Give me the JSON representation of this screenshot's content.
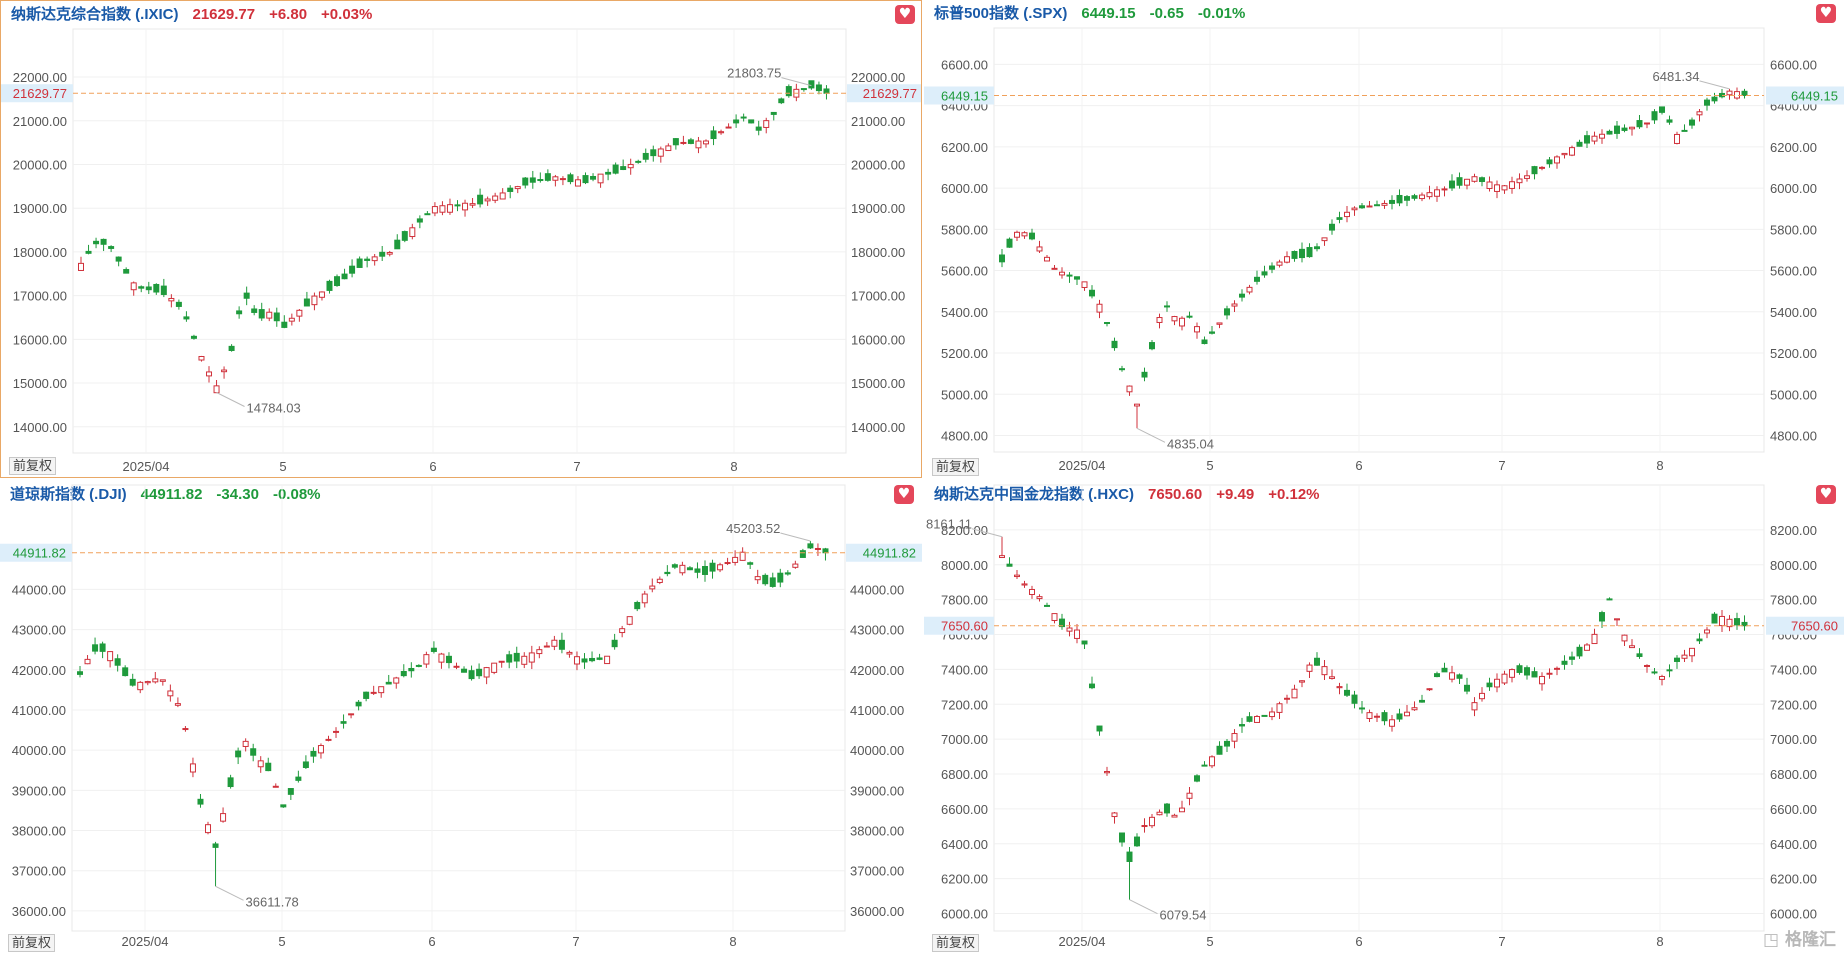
{
  "panels": [
    {
      "name": "纳斯达克综合指数",
      "code": "(.IXIC)",
      "last": "21629.77",
      "change": "+6.80",
      "pct": "+0.03%",
      "direction": "up",
      "active": true,
      "adjust_label": "前复权",
      "chart_data": {
        "type": "candlestick",
        "title": "纳斯达克综合指数 (.IXIC)",
        "x_tick_labels": [
          "2025/04",
          "5",
          "6",
          "7",
          "8"
        ],
        "y_tick_labels": [
          "22000.00",
          "21000.00",
          "20000.00",
          "19000.00",
          "18000.00",
          "17000.00",
          "16000.00",
          "15000.00",
          "14000.00"
        ],
        "ylim": [
          13400,
          22550
        ],
        "current_price": 21629.77,
        "current_price_label": "21629.77",
        "max": {
          "value": 21803.75,
          "label": "21803.75"
        },
        "min": {
          "value": 14784.03,
          "label": "14784.03"
        },
        "trend": [
          [
            0,
            17700
          ],
          [
            2,
            18200
          ],
          [
            4,
            18200
          ],
          [
            8,
            17200
          ],
          [
            12,
            17100
          ],
          [
            15,
            16700
          ],
          [
            18,
            15500
          ],
          [
            20,
            14900
          ],
          [
            22,
            15600
          ],
          [
            24,
            17100
          ],
          [
            26,
            16500
          ],
          [
            28,
            16600
          ],
          [
            30,
            16300
          ],
          [
            34,
            16900
          ],
          [
            38,
            17300
          ],
          [
            42,
            17800
          ],
          [
            46,
            18000
          ],
          [
            50,
            18700
          ],
          [
            52,
            19000
          ],
          [
            58,
            19100
          ],
          [
            62,
            19300
          ],
          [
            66,
            19600
          ],
          [
            70,
            19700
          ],
          [
            74,
            19600
          ],
          [
            78,
            19800
          ],
          [
            80,
            19900
          ],
          [
            84,
            20200
          ],
          [
            88,
            20500
          ],
          [
            92,
            20500
          ],
          [
            96,
            20900
          ],
          [
            98,
            21100
          ],
          [
            100,
            20800
          ],
          [
            102,
            21100
          ],
          [
            104,
            21600
          ],
          [
            108,
            21800
          ],
          [
            110,
            21620
          ]
        ],
        "candle_count": 100,
        "grid": true,
        "price_line_color": "#f0a05a",
        "up_color": "#d0313b",
        "down_color": "#1f9a3c"
      }
    },
    {
      "name": "标普500指数",
      "code": "(.SPX)",
      "last": "6449.15",
      "change": "-0.65",
      "pct": "-0.01%",
      "direction": "down",
      "active": false,
      "adjust_label": "前复权",
      "chart_data": {
        "type": "candlestick",
        "title": "标普500指数 (.SPX)",
        "x_tick_labels": [
          "2025/04",
          "5",
          "6",
          "7",
          "8"
        ],
        "y_tick_labels": [
          "6600.00",
          "6400.00",
          "6200.00",
          "6000.00",
          "5800.00",
          "5600.00",
          "5400.00",
          "5200.00",
          "5000.00",
          "4800.00"
        ],
        "ylim": [
          4720,
          6660
        ],
        "current_price": 6449.15,
        "current_price_label": "6449.15",
        "max": {
          "value": 6481.34,
          "label": "6481.34"
        },
        "min": {
          "value": 4835.04,
          "label": "4835.04"
        },
        "trend": [
          [
            0,
            5650
          ],
          [
            2,
            5780
          ],
          [
            4,
            5780
          ],
          [
            8,
            5600
          ],
          [
            12,
            5550
          ],
          [
            15,
            5400
          ],
          [
            18,
            5100
          ],
          [
            20,
            4950
          ],
          [
            22,
            5200
          ],
          [
            24,
            5450
          ],
          [
            26,
            5350
          ],
          [
            28,
            5380
          ],
          [
            30,
            5250
          ],
          [
            34,
            5420
          ],
          [
            38,
            5560
          ],
          [
            42,
            5660
          ],
          [
            46,
            5680
          ],
          [
            50,
            5850
          ],
          [
            52,
            5900
          ],
          [
            58,
            5930
          ],
          [
            62,
            5960
          ],
          [
            66,
            6000
          ],
          [
            70,
            6050
          ],
          [
            74,
            6000
          ],
          [
            78,
            6060
          ],
          [
            80,
            6100
          ],
          [
            84,
            6180
          ],
          [
            88,
            6250
          ],
          [
            92,
            6280
          ],
          [
            96,
            6320
          ],
          [
            98,
            6380
          ],
          [
            100,
            6250
          ],
          [
            102,
            6300
          ],
          [
            104,
            6400
          ],
          [
            108,
            6470
          ],
          [
            110,
            6449
          ]
        ],
        "candle_count": 100,
        "grid": true,
        "price_line_color": "#f0a05a",
        "up_color": "#d0313b",
        "down_color": "#1f9a3c"
      }
    },
    {
      "name": "道琼斯指数",
      "code": "(.DJI)",
      "last": "44911.82",
      "change": "-34.30",
      "pct": "-0.08%",
      "direction": "down",
      "active": false,
      "adjust_label": "前复权",
      "chart_data": {
        "type": "candlestick",
        "title": "道琼斯指数 (.DJI)",
        "x_tick_labels": [
          "2025/04",
          "5",
          "6",
          "7",
          "8"
        ],
        "y_tick_labels": [
          "44000.00",
          "43000.00",
          "42000.00",
          "41000.00",
          "40000.00",
          "39000.00",
          "38000.00",
          "37000.00",
          "36000.00"
        ],
        "ylim": [
          35500,
          46000
        ],
        "current_price": 44911.82,
        "current_price_label": "44911.82",
        "max": {
          "value": 45203.52,
          "label": "45203.52"
        },
        "min": {
          "value": 36611.78,
          "label": "36611.78"
        },
        "trend": [
          [
            0,
            41900
          ],
          [
            2,
            42500
          ],
          [
            4,
            42500
          ],
          [
            8,
            41600
          ],
          [
            12,
            41800
          ],
          [
            15,
            41000
          ],
          [
            18,
            38500
          ],
          [
            20,
            37600
          ],
          [
            22,
            39000
          ],
          [
            24,
            40300
          ],
          [
            26,
            39800
          ],
          [
            28,
            39500
          ],
          [
            30,
            38600
          ],
          [
            34,
            39800
          ],
          [
            38,
            40500
          ],
          [
            42,
            41300
          ],
          [
            46,
            41700
          ],
          [
            50,
            42100
          ],
          [
            52,
            42500
          ],
          [
            58,
            41800
          ],
          [
            62,
            42200
          ],
          [
            66,
            42300
          ],
          [
            70,
            42700
          ],
          [
            74,
            42200
          ],
          [
            78,
            42300
          ],
          [
            80,
            43000
          ],
          [
            84,
            44000
          ],
          [
            88,
            44600
          ],
          [
            92,
            44400
          ],
          [
            96,
            44700
          ],
          [
            98,
            44900
          ],
          [
            100,
            44300
          ],
          [
            102,
            44100
          ],
          [
            104,
            44300
          ],
          [
            108,
            45100
          ],
          [
            110,
            44911
          ]
        ],
        "candle_count": 100,
        "grid": true,
        "price_line_color": "#f0a05a",
        "up_color": "#d0313b",
        "down_color": "#1f9a3c"
      }
    },
    {
      "name": "纳斯达克中国金龙指数",
      "code": "(.HXC)",
      "last": "7650.60",
      "change": "+9.49",
      "pct": "+0.12%",
      "direction": "up",
      "active": false,
      "adjust_label": "前复权",
      "chart_data": {
        "type": "candlestick",
        "title": "纳斯达克中国金龙指数 (.HXC)",
        "x_tick_labels": [
          "2025/04",
          "5",
          "6",
          "7",
          "8"
        ],
        "y_tick_labels": [
          "8200.00",
          "8000.00",
          "7800.00",
          "7600.00",
          "7400.00",
          "7200.00",
          "7000.00",
          "6800.00",
          "6600.00",
          "6400.00",
          "6200.00",
          "6000.00"
        ],
        "ylim": [
          5900,
          8320
        ],
        "current_price": 7650.6,
        "current_price_label": "7650.60",
        "max": {
          "value": 8161.11,
          "label": "8161.11"
        },
        "min": {
          "value": 6079.54,
          "label": "6079.54"
        },
        "trend": [
          [
            0,
            8050
          ],
          [
            3,
            7900
          ],
          [
            6,
            7800
          ],
          [
            9,
            7650
          ],
          [
            12,
            7600
          ],
          [
            14,
            7150
          ],
          [
            17,
            6500
          ],
          [
            19,
            6300
          ],
          [
            21,
            6500
          ],
          [
            24,
            6600
          ],
          [
            26,
            6550
          ],
          [
            28,
            6700
          ],
          [
            30,
            6850
          ],
          [
            33,
            6950
          ],
          [
            36,
            7100
          ],
          [
            40,
            7150
          ],
          [
            44,
            7300
          ],
          [
            46,
            7450
          ],
          [
            48,
            7400
          ],
          [
            50,
            7300
          ],
          [
            54,
            7150
          ],
          [
            58,
            7100
          ],
          [
            62,
            7200
          ],
          [
            65,
            7400
          ],
          [
            68,
            7350
          ],
          [
            70,
            7200
          ],
          [
            72,
            7300
          ],
          [
            76,
            7400
          ],
          [
            80,
            7350
          ],
          [
            84,
            7450
          ],
          [
            86,
            7500
          ],
          [
            88,
            7600
          ],
          [
            90,
            7800
          ],
          [
            92,
            7600
          ],
          [
            94,
            7500
          ],
          [
            96,
            7400
          ],
          [
            98,
            7350
          ],
          [
            100,
            7450
          ],
          [
            102,
            7500
          ],
          [
            104,
            7600
          ],
          [
            106,
            7700
          ],
          [
            110,
            7650
          ]
        ],
        "candle_count": 100,
        "grid": true,
        "price_line_color": "#f0a05a",
        "up_color": "#d0313b",
        "down_color": "#1f9a3c"
      }
    }
  ],
  "logo_text": "格隆汇",
  "fav_icon": "heart-icon"
}
